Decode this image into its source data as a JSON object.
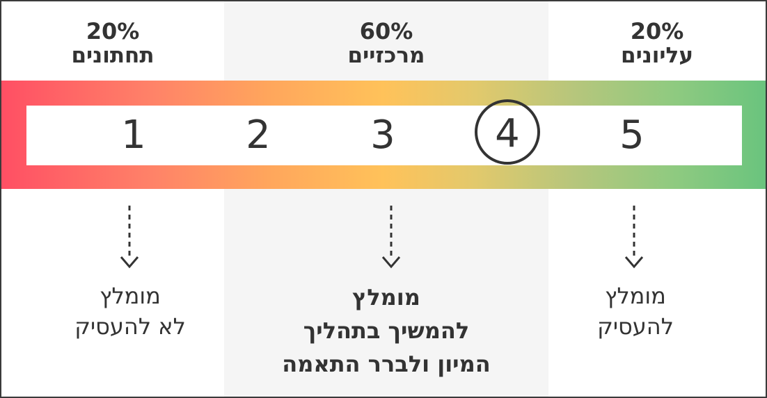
{
  "groups": {
    "bottom": {
      "percent": "20%",
      "label": "תחתונים",
      "outcome": [
        "מומלץ",
        "לא להעסיק"
      ]
    },
    "middle": {
      "percent": "60%",
      "label": "מרכזיים",
      "outcome": [
        "מומלץ",
        "להמשיך בתהליך",
        "המיון ולברר התאמה"
      ]
    },
    "top": {
      "percent": "20%",
      "label": "עליונים",
      "outcome": [
        "מומלץ",
        "להעסיק"
      ]
    }
  },
  "scale": {
    "scores": [
      "1",
      "2",
      "3",
      "4",
      "5"
    ],
    "highlighted": "4"
  },
  "colors": {
    "low": "#ff4f64",
    "mid": "#ffc25a",
    "high": "#6ac47e",
    "text": "#333333",
    "panel": "#f5f5f5"
  }
}
